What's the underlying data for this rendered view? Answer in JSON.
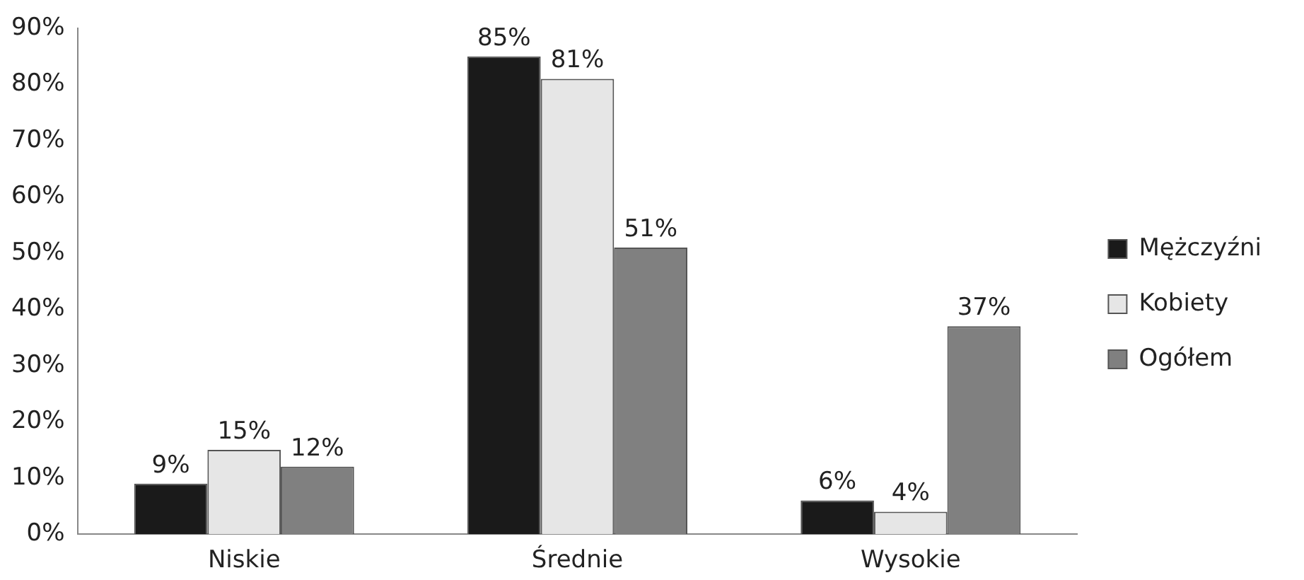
{
  "chart_data": {
    "type": "bar",
    "categories": [
      "Niskie",
      "Średnie",
      "Wysokie"
    ],
    "series": [
      {
        "name": "Mężczyźni",
        "color": "#1a1a1a",
        "values": [
          9,
          85,
          6
        ],
        "value_labels": [
          "9%",
          "85%",
          "6%"
        ]
      },
      {
        "name": "Kobiety",
        "color": "#e6e6e6",
        "values": [
          15,
          81,
          4
        ],
        "value_labels": [
          "15%",
          "81%",
          "4%"
        ]
      },
      {
        "name": "Ogółem",
        "color": "#808080",
        "values": [
          12,
          51,
          37
        ],
        "value_labels": [
          "12%",
          "51%",
          "37%"
        ]
      }
    ],
    "ylim": [
      0,
      90
    ],
    "yticks": [
      {
        "value": 0,
        "label": "0%"
      },
      {
        "value": 10,
        "label": "10%"
      },
      {
        "value": 20,
        "label": "20%"
      },
      {
        "value": 30,
        "label": "30%"
      },
      {
        "value": 40,
        "label": "40%"
      },
      {
        "value": 50,
        "label": "50%"
      },
      {
        "value": 60,
        "label": "60%"
      },
      {
        "value": 70,
        "label": "70%"
      },
      {
        "value": 80,
        "label": "80%"
      },
      {
        "value": 90,
        "label": "90%"
      }
    ],
    "grid": false,
    "legend": "right"
  }
}
